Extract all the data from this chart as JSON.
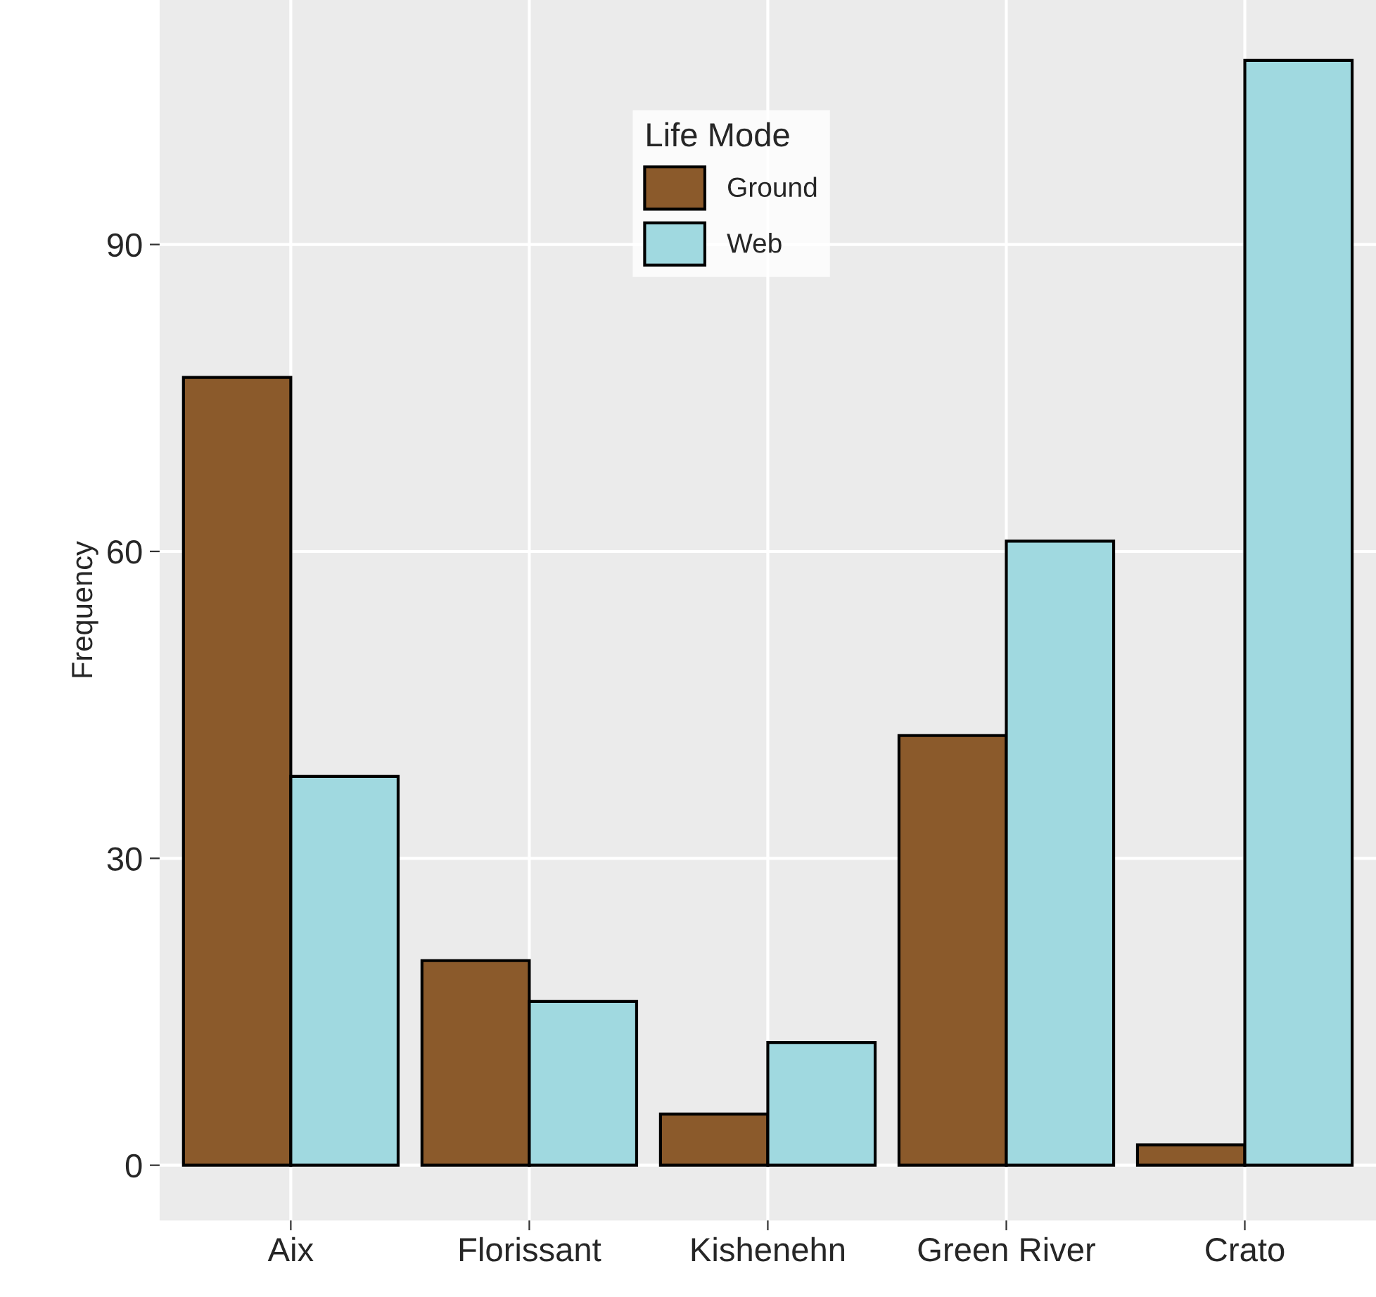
{
  "chart_data": {
    "type": "bar",
    "ylabel": "Frequency",
    "legend_title": "Life Mode",
    "categories": [
      "Aix",
      "Florissant",
      "Kishenehn",
      "Green River",
      "Crato"
    ],
    "series": [
      {
        "name": "Ground",
        "color": "#8b5a2b",
        "values": [
          77,
          20,
          5,
          42,
          2
        ]
      },
      {
        "name": "Web",
        "color": "#a0d9e0",
        "values": [
          38,
          16,
          12,
          61,
          108
        ]
      }
    ],
    "ylim": [
      -5.4,
      113.9
    ],
    "yticks": [
      0,
      30,
      60,
      90
    ],
    "grid": true,
    "legend": "top"
  }
}
